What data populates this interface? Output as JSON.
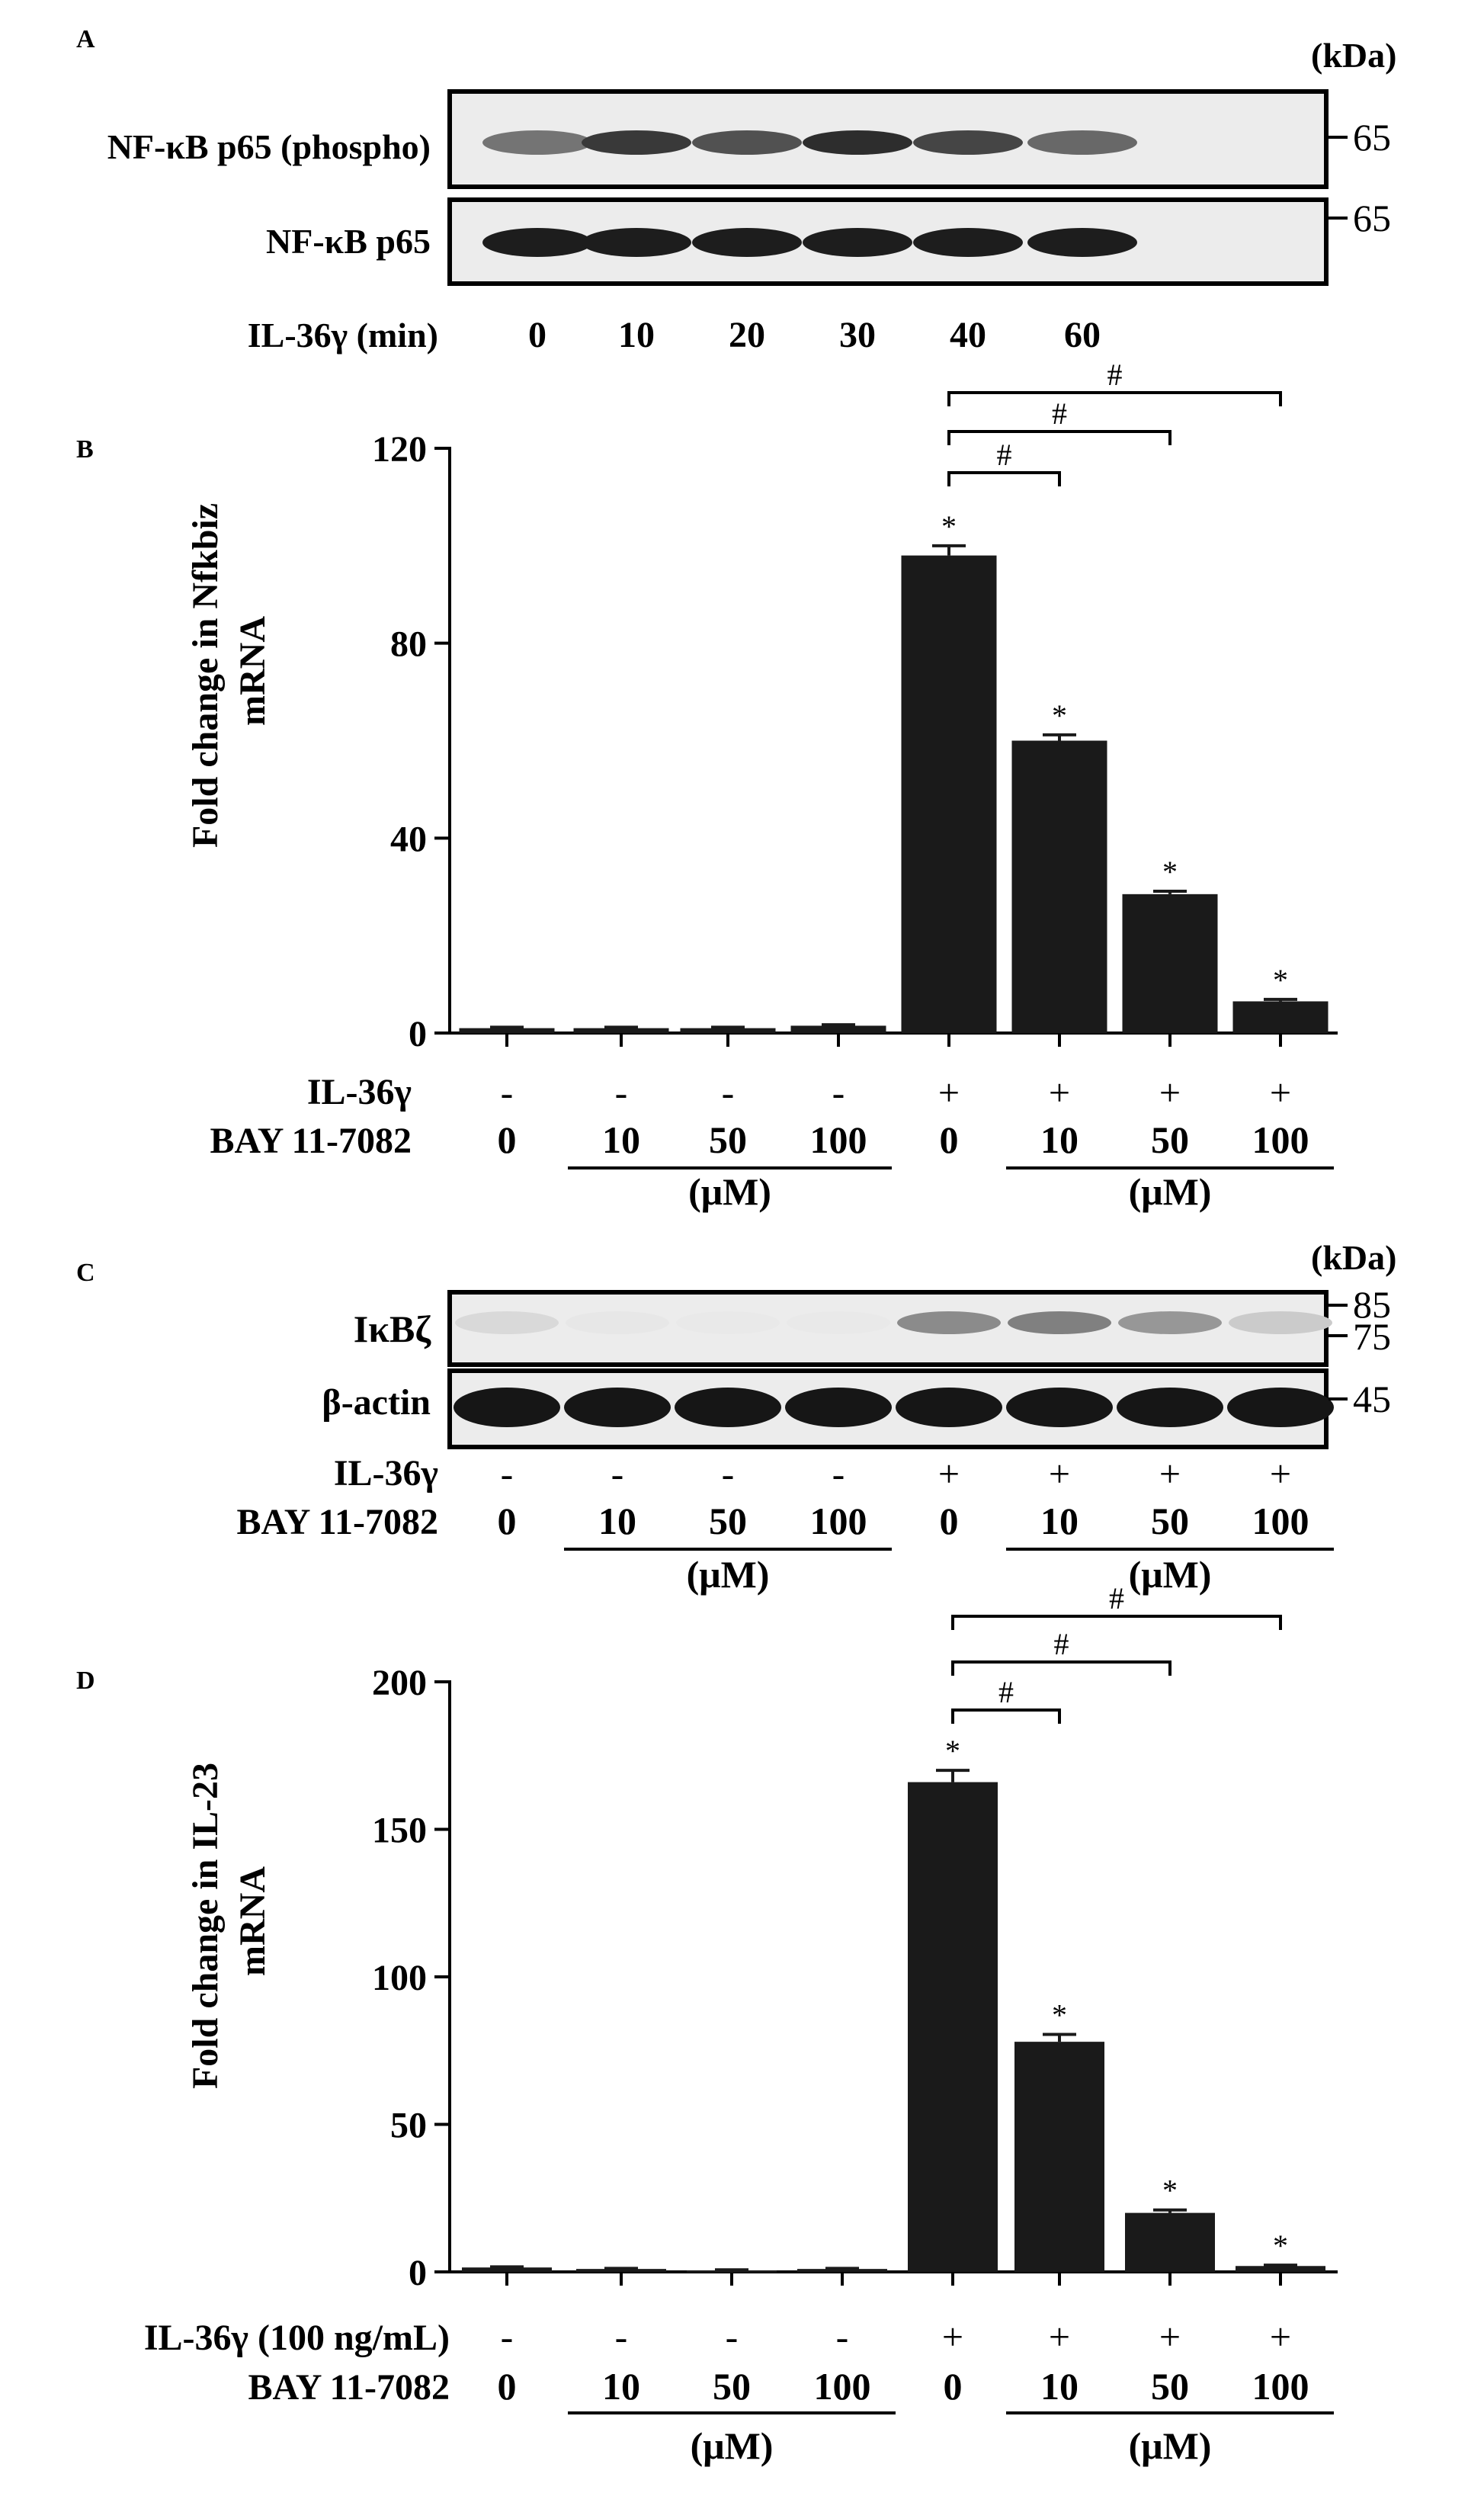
{
  "panels": {
    "a": {
      "letter": "A",
      "kda_label": "(kDa)",
      "rows": [
        {
          "label": "NF-κB p65 (phospho)",
          "marker": "65"
        },
        {
          "label": "NF-κB p65",
          "marker": "65"
        }
      ],
      "time_label": "IL-36γ (min)",
      "times": [
        "0",
        "10",
        "20",
        "30",
        "40",
        "60"
      ],
      "phospho_intensity": [
        0.55,
        0.8,
        0.7,
        0.85,
        0.75,
        0.6
      ]
    },
    "b": {
      "letter": "B",
      "il36_label": "IL-36γ",
      "bay_label": "BAY 11-7082",
      "unit": "(μM)",
      "signs": [
        "-",
        "-",
        "-",
        "-",
        "+",
        "+",
        "+",
        "+"
      ],
      "doses": [
        "0",
        "10",
        "50",
        "100",
        "0",
        "10",
        "50",
        "100"
      ],
      "hash": "#",
      "star": "*"
    },
    "c": {
      "letter": "C",
      "kda_label": "(kDa)",
      "rows": [
        {
          "label": "IκBζ",
          "markers": [
            "85",
            "75"
          ]
        },
        {
          "label": "β-actin",
          "markers": [
            "45"
          ]
        }
      ],
      "il36_label": "IL-36γ",
      "bay_label": "BAY 11-7082",
      "unit": "(μM)",
      "signs": [
        "-",
        "-",
        "-",
        "-",
        "+",
        "+",
        "+",
        "+"
      ],
      "doses": [
        "0",
        "10",
        "50",
        "100",
        "0",
        "10",
        "50",
        "100"
      ],
      "ikbz_intensity": [
        0.12,
        0.06,
        0.05,
        0.05,
        0.45,
        0.5,
        0.4,
        0.18
      ]
    },
    "d": {
      "letter": "D",
      "il36_label": "IL-36γ (100 ng/mL)",
      "bay_label": "BAY 11-7082",
      "unit": "(μM)",
      "signs": [
        "-",
        "-",
        "-",
        "-",
        "+",
        "+",
        "+",
        "+"
      ],
      "doses": [
        "0",
        "10",
        "50",
        "100",
        "0",
        "10",
        "50",
        "100"
      ],
      "hash": "#",
      "star": "*"
    }
  },
  "chart_data": [
    {
      "type": "bar",
      "panel": "B",
      "ylabel": "Fold change in Nfkbiz mRNA",
      "ylim": [
        0,
        120
      ],
      "yticks": [
        0,
        40,
        80,
        120
      ],
      "values": [
        1,
        1,
        1,
        1.5,
        98,
        60,
        28.5,
        6.5
      ],
      "errors": [
        0.2,
        0.2,
        0.2,
        0.2,
        2,
        1.2,
        0.6,
        0.4
      ],
      "significant": [
        false,
        false,
        false,
        false,
        true,
        true,
        true,
        true
      ],
      "comparisons": [
        [
          4,
          5
        ],
        [
          4,
          6
        ],
        [
          4,
          7
        ]
      ]
    },
    {
      "type": "bar",
      "panel": "D",
      "ylabel": "Fold change in IL-23 mRNA",
      "ylim": [
        0,
        200
      ],
      "yticks": [
        0,
        50,
        100,
        150,
        200
      ],
      "values": [
        1.5,
        1,
        0.5,
        1,
        166,
        78,
        20,
        2
      ],
      "errors": [
        0.2,
        0.2,
        0.2,
        0.2,
        4,
        2.5,
        1,
        0.3
      ],
      "significant": [
        false,
        false,
        false,
        false,
        true,
        true,
        true,
        true
      ],
      "comparisons": [
        [
          4,
          5
        ],
        [
          4,
          6
        ],
        [
          4,
          7
        ]
      ]
    }
  ]
}
